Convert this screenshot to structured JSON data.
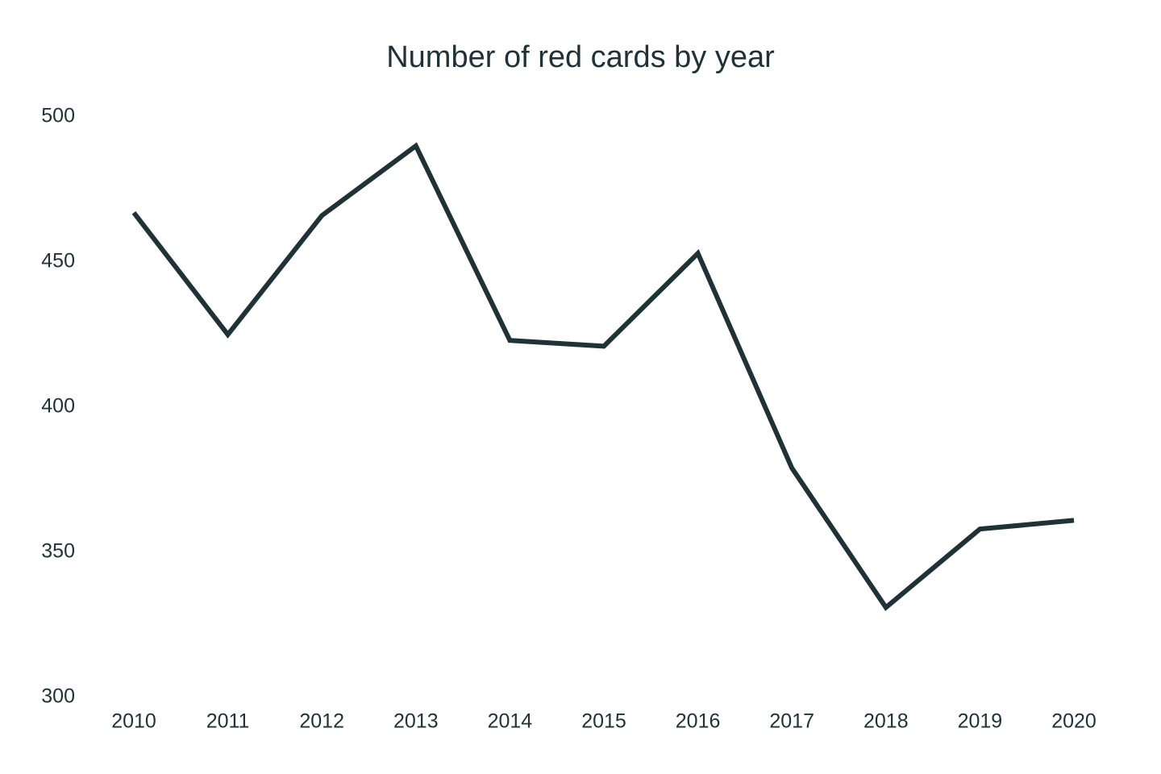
{
  "chart_data": {
    "type": "line",
    "title": "Number of red cards by year",
    "categories": [
      "2010",
      "2011",
      "2012",
      "2013",
      "2014",
      "2015",
      "2016",
      "2017",
      "2018",
      "2019",
      "2020"
    ],
    "values": [
      467,
      425,
      466,
      490,
      423,
      421,
      453,
      379,
      331,
      358,
      361
    ],
    "color": "#1e3238",
    "ylim": [
      300,
      500
    ],
    "yticks": [
      300,
      350,
      400,
      450,
      500
    ],
    "grid": false
  }
}
